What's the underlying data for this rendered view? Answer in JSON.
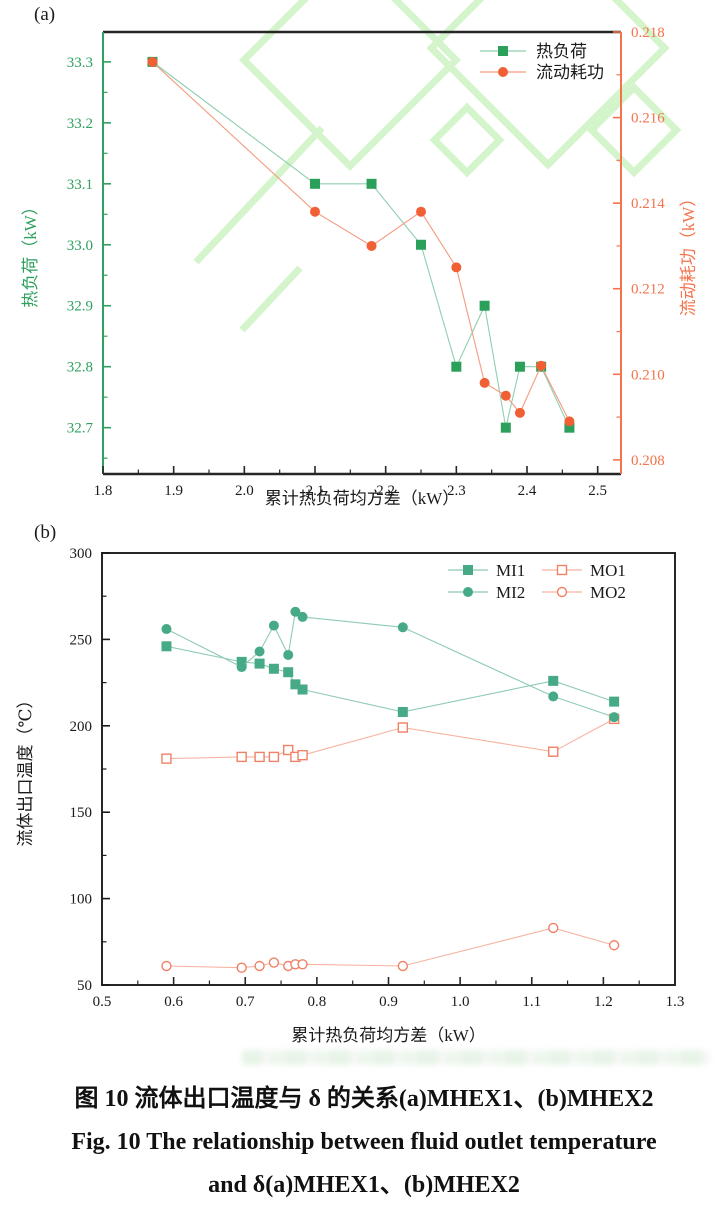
{
  "caption": {
    "line1": "图 10  流体出口温度与 δ 的关系(a)MHEX1、(b)MHEX2",
    "line2": "Fig. 10  The relationship between fluid outlet temperature",
    "line3": "and δ(a)MHEX1、(b)MHEX2"
  },
  "watermark": {
    "color": "#b4eca6"
  },
  "chart_data": [
    {
      "id": "a",
      "type": "line",
      "panel_label": "(a)",
      "xlabel": "累计热负荷均方差（kW）",
      "xlim": [
        1.8,
        2.533
      ],
      "xticks": [
        1.8,
        1.9,
        2.0,
        2.1,
        2.2,
        2.3,
        2.4,
        2.5
      ],
      "xtick_labels": [
        "1.8",
        "1.9",
        "2.0",
        "2.1",
        "2.2",
        "2.3",
        "2.4",
        "2.5"
      ],
      "x_minor_step": 0.05,
      "frame": "split",
      "frame_color": "#262626",
      "axes": {
        "left": {
          "label": "热负荷（kW）",
          "color": "#2fa05f",
          "lim": [
            32.624,
            33.349
          ],
          "ticks": [
            32.7,
            32.8,
            32.9,
            33.0,
            33.1,
            33.2,
            33.3
          ],
          "tick_labels": [
            "32.7",
            "32.8",
            "32.9",
            "33.0",
            "33.1",
            "33.2",
            "33.3"
          ],
          "minor_step": 0.05
        },
        "right": {
          "label": "流动耗功（kW）",
          "color": "#f4734c",
          "lim": [
            0.20767,
            0.218
          ],
          "ticks": [
            0.208,
            0.21,
            0.212,
            0.214,
            0.216,
            0.218
          ],
          "tick_labels": [
            "0.208",
            "0.210",
            "0.212",
            "0.214",
            "0.216",
            "0.218"
          ],
          "minor_step": 0.001
        }
      },
      "series": [
        {
          "name": "热负荷",
          "axis": "left",
          "marker": "square",
          "fill": "solid",
          "color": "#2aa05a",
          "line_color": "#8fcfae",
          "msize": 10,
          "x": [
            1.87,
            2.1,
            2.18,
            2.25,
            2.3,
            2.34,
            2.37,
            2.39,
            2.42,
            2.46
          ],
          "y": [
            33.3,
            33.1,
            33.1,
            33.0,
            32.8,
            32.9,
            32.7,
            32.8,
            32.8,
            32.7
          ]
        },
        {
          "name": "流动耗功",
          "axis": "right",
          "marker": "circle",
          "fill": "solid",
          "color": "#f15f35",
          "line_color": "#f59b80",
          "msize": 10,
          "x": [
            1.87,
            2.1,
            2.18,
            2.25,
            2.3,
            2.34,
            2.37,
            2.39,
            2.42,
            2.46
          ],
          "y": [
            0.2173,
            0.2138,
            0.213,
            0.2138,
            0.2125,
            0.2098,
            0.2095,
            0.2091,
            0.2102,
            0.2089
          ]
        }
      ],
      "legend": {
        "items": [
          "热负荷",
          "流动耗功"
        ],
        "cols": 1
      }
    },
    {
      "id": "b",
      "type": "line",
      "panel_label": "(b)",
      "xlabel": "累计热负荷均方差（kW）",
      "xlim": [
        0.5,
        1.3
      ],
      "xticks": [
        0.5,
        0.6,
        0.7,
        0.8,
        0.9,
        1.0,
        1.1,
        1.2,
        1.3
      ],
      "xtick_labels": [
        "0.5",
        "0.6",
        "0.7",
        "0.8",
        "0.9",
        "1.0",
        "1.1",
        "1.2",
        "1.3"
      ],
      "x_minor_step": 0.05,
      "frame": "box",
      "frame_color": "#262626",
      "axes": {
        "left": {
          "label": "流体出口温度（℃）",
          "color": "#1a1a1a",
          "lim": [
            50,
            300
          ],
          "ticks": [
            50,
            100,
            150,
            200,
            250,
            300
          ],
          "tick_labels": [
            "50",
            "100",
            "150",
            "200",
            "250",
            "300"
          ],
          "minor_step": 25
        }
      },
      "series": [
        {
          "name": "MO1",
          "axis": "left",
          "marker": "square",
          "fill": "open",
          "color": "#ef8166",
          "line_color": "#f7b3a1",
          "msize": 9,
          "x": [
            0.59,
            0.695,
            0.72,
            0.74,
            0.76,
            0.77,
            0.78,
            0.92,
            1.13,
            1.215
          ],
          "y": [
            181,
            182,
            182,
            182,
            186,
            182,
            183,
            199,
            185,
            204
          ]
        },
        {
          "name": "MO2",
          "axis": "left",
          "marker": "circle",
          "fill": "open",
          "color": "#ef8166",
          "line_color": "#f7b3a1",
          "msize": 9,
          "x": [
            0.59,
            0.695,
            0.72,
            0.74,
            0.76,
            0.77,
            0.78,
            0.92,
            1.13,
            1.215
          ],
          "y": [
            61,
            60,
            61,
            63,
            61,
            62,
            62,
            61,
            83,
            73
          ]
        },
        {
          "name": "MI1",
          "axis": "left",
          "marker": "square",
          "fill": "solid",
          "color": "#46aa86",
          "line_color": "#8fcbb4",
          "msize": 10,
          "x": [
            0.59,
            0.695,
            0.72,
            0.74,
            0.76,
            0.77,
            0.78,
            0.92,
            1.13,
            1.215
          ],
          "y": [
            246,
            237,
            236,
            233,
            231,
            224,
            221,
            208,
            226,
            214
          ]
        },
        {
          "name": "MI2",
          "axis": "left",
          "marker": "circle",
          "fill": "solid",
          "color": "#46aa86",
          "line_color": "#8fcbb4",
          "msize": 10,
          "x": [
            0.59,
            0.695,
            0.72,
            0.74,
            0.76,
            0.77,
            0.78,
            0.92,
            1.13,
            1.215
          ],
          "y": [
            256,
            234,
            243,
            258,
            241,
            266,
            263,
            257,
            217,
            205
          ]
        }
      ],
      "legend": {
        "items": [
          "MI1",
          "MO1",
          "MI2",
          "MO2"
        ],
        "cols": 2
      }
    }
  ]
}
